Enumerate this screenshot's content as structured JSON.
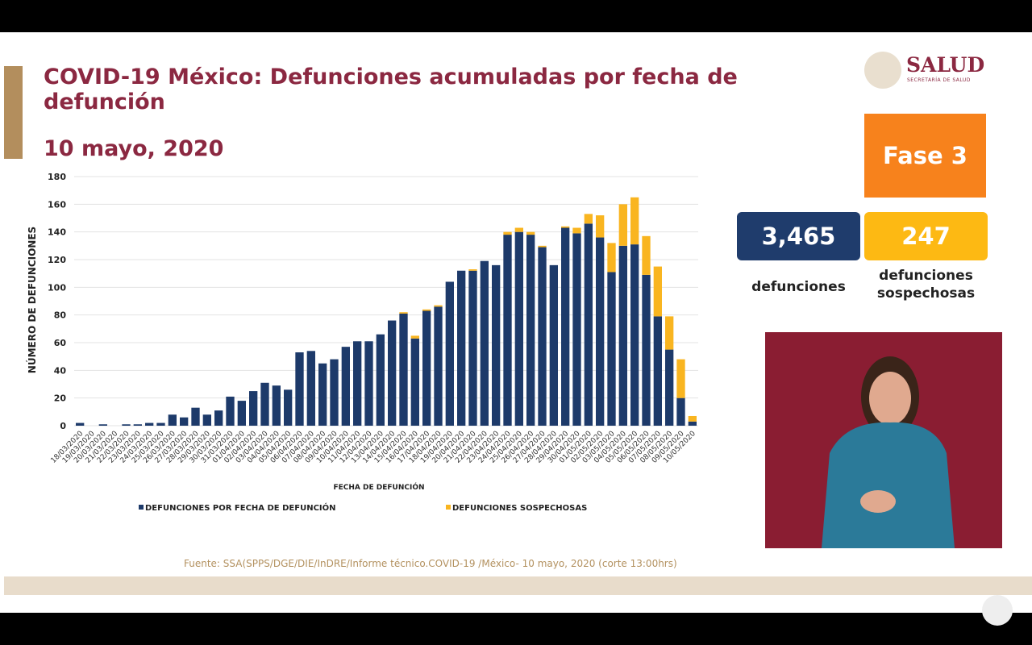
{
  "header": {
    "title": "COVID-19 México: Defunciones acumuladas por fecha de defunción",
    "date": "10 mayo, 2020"
  },
  "logo": {
    "name": "SALUD",
    "subtitle": "SECRETARÍA DE SALUD"
  },
  "phase": "Fase 3",
  "stats": [
    {
      "value": "3,465",
      "label": "defunciones"
    },
    {
      "value": "247",
      "label": "defunciones sospechosas"
    }
  ],
  "chart_data": {
    "type": "bar",
    "stacked": true,
    "x_label": "FECHA DE DEFUNCIÓN",
    "y_label": "NÚMERO DE DEFUNCIONES",
    "categories": [
      "18/03/2020",
      "19/03/2020",
      "20/03/2020",
      "21/03/2020",
      "22/03/2020",
      "23/03/2020",
      "24/03/2020",
      "25/03/2020",
      "26/03/2020",
      "27/03/2020",
      "28/03/2020",
      "29/03/2020",
      "30/03/2020",
      "31/03/2020",
      "01/04/2020",
      "02/04/2020",
      "03/04/2020",
      "04/04/2020",
      "05/04/2020",
      "06/04/2020",
      "07/04/2020",
      "08/04/2020",
      "09/04/2020",
      "10/04/2020",
      "11/04/2020",
      "12/04/2020",
      "13/04/2020",
      "14/04/2020",
      "15/04/2020",
      "16/04/2020",
      "17/04/2020",
      "18/04/2020",
      "19/04/2020",
      "20/04/2020",
      "21/04/2020",
      "22/04/2020",
      "23/04/2020",
      "24/04/2020",
      "25/04/2020",
      "26/04/2020",
      "27/04/2020",
      "28/04/2020",
      "29/04/2020",
      "30/04/2020",
      "01/05/2020",
      "02/05/2020",
      "03/05/2020",
      "04/05/2020",
      "05/05/2020",
      "06/05/2020",
      "07/05/2020",
      "08/05/2020",
      "09/05/2020",
      "10/05/2020"
    ],
    "series": [
      {
        "name": "DEFUNCIONES POR FECHA DE DEFUNCIÓN",
        "color": "#1d3a6a",
        "values": [
          2,
          0,
          1,
          0,
          1,
          1,
          2,
          2,
          8,
          6,
          13,
          8,
          11,
          21,
          18,
          25,
          31,
          29,
          26,
          53,
          54,
          45,
          48,
          57,
          61,
          61,
          66,
          76,
          81,
          63,
          83,
          86,
          104,
          112,
          112,
          119,
          116,
          138,
          140,
          138,
          129,
          116,
          143,
          139,
          146,
          136,
          111,
          130,
          131,
          109,
          79,
          55,
          20,
          3
        ]
      },
      {
        "name": "DEFUNCIONES SOSPECHOSAS",
        "color": "#f9b520",
        "values": [
          0,
          0,
          0,
          0,
          0,
          0,
          0,
          0,
          0,
          0,
          0,
          0,
          0,
          0,
          0,
          0,
          0,
          0,
          0,
          0,
          0,
          0,
          0,
          0,
          0,
          0,
          0,
          0,
          1,
          2,
          1,
          1,
          0,
          0,
          1,
          0,
          0,
          2,
          3,
          2,
          1,
          0,
          1,
          4,
          7,
          16,
          21,
          30,
          34,
          28,
          36,
          24,
          28,
          4
        ]
      }
    ],
    "ylim": [
      0,
      180
    ],
    "yticks": [
      0,
      20,
      40,
      60,
      80,
      100,
      120,
      140,
      160,
      180
    ],
    "grid": true
  },
  "source": "Fuente: SSA(SPPS/DGE/DIE/InDRE/Informe técnico.COVID-19 /México- 10 mayo, 2020 (corte 13:00hrs)"
}
